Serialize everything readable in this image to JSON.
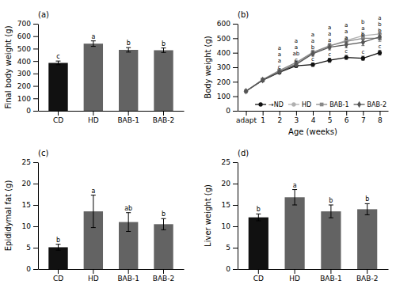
{
  "chart_data": [
    {
      "type": "bar",
      "title": "(a)",
      "categories": [
        "CD",
        "HD",
        "BAB-1",
        "BAB-2"
      ],
      "values": [
        385,
        540,
        490,
        487
      ],
      "errors": [
        15,
        22,
        18,
        18
      ],
      "colors": [
        "#111111",
        "#636363",
        "#636363",
        "#636363"
      ],
      "annotations": [
        "c",
        "a",
        "b",
        "b"
      ],
      "ylabel": "Final body weight (g)",
      "ylim": [
        0,
        700
      ],
      "yticks": [
        0,
        100,
        200,
        300,
        400,
        500,
        600,
        700
      ]
    },
    {
      "type": "line",
      "title": "(b)",
      "x": [
        0,
        1,
        2,
        3,
        4,
        5,
        6,
        7,
        8
      ],
      "xticks": [
        {
          "value": 0,
          "label": "adapt"
        },
        1,
        2,
        3,
        4,
        5,
        6,
        7,
        8
      ],
      "xlim": [
        -0.5,
        8.5
      ],
      "series": [
        {
          "name": "→ND",
          "color": "#111111",
          "marker": "circle",
          "values": [
            135,
            210,
            265,
            310,
            318,
            348,
            368,
            362,
            400
          ],
          "errors": [
            3,
            8,
            10,
            10,
            12,
            14,
            14,
            14,
            16
          ],
          "annotations": [
            null,
            null,
            "c",
            "c",
            "c",
            "c",
            "c",
            "c",
            "c"
          ]
        },
        {
          "name": "HD",
          "color": "#b0b0b0",
          "marker": "circle",
          "values": [
            135,
            213,
            275,
            325,
            400,
            447,
            485,
            518,
            530
          ],
          "errors": [
            3,
            8,
            10,
            14,
            16,
            18,
            20,
            23,
            23
          ],
          "annotations": [
            null,
            null,
            "a",
            "a",
            "a",
            "a",
            "a",
            "b",
            "a"
          ]
        },
        {
          "name": "BAB-1",
          "color": "#888888",
          "marker": "square",
          "values": [
            135,
            215,
            278,
            333,
            403,
            448,
            478,
            500,
            500
          ],
          "errors": [
            3,
            8,
            10,
            14,
            16,
            18,
            20,
            23,
            23
          ],
          "annotations": [
            null,
            null,
            "a",
            "a",
            "a",
            "a",
            "a",
            "a",
            "b"
          ]
        },
        {
          "name": "BAB-2",
          "color": "#555555",
          "marker": "diamond",
          "values": [
            135,
            212,
            268,
            320,
            393,
            438,
            455,
            472,
            510
          ],
          "errors": [
            3,
            8,
            10,
            14,
            16,
            18,
            20,
            23,
            23
          ],
          "annotations": [
            null,
            null,
            "a",
            "ab",
            "b",
            "a",
            "a",
            "b",
            "b"
          ]
        }
      ],
      "ylabel": "Body weight (g)",
      "xlabel": "Age (weeks)",
      "ylim": [
        0,
        600
      ],
      "yticks": [
        0,
        100,
        200,
        300,
        400,
        500,
        600
      ],
      "legend": "lower right"
    },
    {
      "type": "bar",
      "title": "(c)",
      "categories": [
        "CD",
        "HD",
        "BAB-1",
        "BAB-2"
      ],
      "values": [
        5.1,
        13.5,
        11.0,
        10.5
      ],
      "errors": [
        0.7,
        3.8,
        2.2,
        1.3
      ],
      "colors": [
        "#111111",
        "#636363",
        "#636363",
        "#636363"
      ],
      "annotations": [
        "b",
        "a",
        "ab",
        "b"
      ],
      "ylabel": "Epididymal fat (g)",
      "ylim": [
        0,
        25
      ],
      "yticks": [
        0,
        5,
        10,
        15,
        20,
        25
      ]
    },
    {
      "type": "bar",
      "title": "(d)",
      "categories": [
        "CD",
        "HD",
        "BAB-1",
        "BAB-2"
      ],
      "values": [
        12.1,
        16.8,
        13.5,
        14.0
      ],
      "errors": [
        0.8,
        1.8,
        1.5,
        1.3
      ],
      "colors": [
        "#111111",
        "#636363",
        "#636363",
        "#636363"
      ],
      "annotations": [
        "b",
        "a",
        "b",
        "b"
      ],
      "ylabel": "Liver weight (g)",
      "ylim": [
        0,
        25
      ],
      "yticks": [
        0,
        5,
        10,
        15,
        20,
        25
      ]
    }
  ]
}
